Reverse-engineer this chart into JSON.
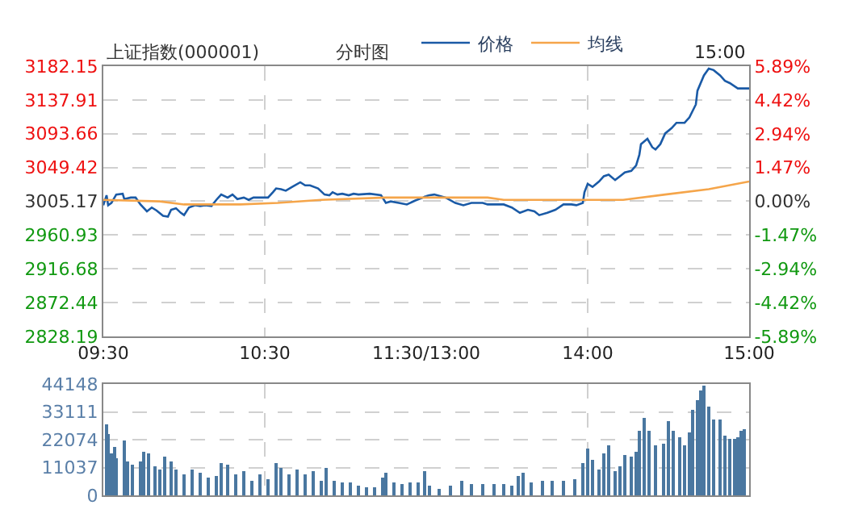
{
  "chart_data": [
    {
      "type": "line",
      "title": "上证指数(000001)",
      "subtitle": "分时图",
      "annotations": [
        "15:00"
      ],
      "legend": "top",
      "grid": true,
      "marker": "none",
      "line_style": "solid",
      "xlim": [
        9.5,
        11.5
      ],
      "xticks": [
        {
          "value": 9.5,
          "label": "09:30"
        },
        {
          "value": 10.5,
          "label": "10:30"
        },
        {
          "value": 11.5,
          "label": "11:30/13:00"
        }
      ],
      "ylim": [
        2828.19,
        3182.15
      ],
      "yticks": [
        2828.19,
        2872.44,
        2916.68,
        2960.93,
        3005.17,
        3049.42,
        3093.66,
        3137.91,
        3182.15
      ],
      "series": [
        {
          "name": "价格",
          "color": "#1a5aa6",
          "x": [
            9.5,
            9.52,
            9.53,
            9.55,
            9.58,
            9.62,
            9.63,
            9.67,
            9.7,
            9.73,
            9.77,
            9.8,
            9.83,
            9.87,
            9.9,
            9.92,
            9.95,
            9.98,
            10,
            10.03,
            10.07,
            10.1,
            10.13,
            10.17,
            10.2,
            10.23,
            10.27,
            10.3,
            10.33,
            10.37,
            10.4,
            10.43,
            10.48,
            10.52,
            10.55,
            10.57,
            10.6,
            10.63,
            10.67,
            10.72,
            10.75,
            10.78,
            10.83,
            10.87,
            10.9,
            10.92,
            10.95,
            10.98,
            11.02,
            11.05,
            11.08,
            11.15,
            11.22,
            11.25,
            11.28,
            11.33,
            11.38,
            11.43,
            11.48,
            11.5
          ],
          "values": [
            3000,
            3013,
            3000,
            3003,
            3014,
            3015,
            3008,
            3010,
            3010,
            3001,
            2992,
            2997,
            2993,
            2986,
            2985,
            2994,
            2996,
            2990,
            2987,
            2997,
            3000,
            2999,
            3000,
            2999,
            3007,
            3014,
            3010,
            3014,
            3008,
            3010,
            3007,
            3010,
            3010,
            3010,
            3017,
            3022,
            3021,
            3019,
            3024,
            3030,
            3026,
            3026,
            3022,
            3014,
            3013,
            3017,
            3014,
            3015,
            3013,
            3015,
            3014,
            3015,
            3013,
            3003,
            3005,
            3003,
            3001,
            3006,
            3010,
            3012
          ]
        },
        {
          "name": "均线",
          "color": "#f5a54a",
          "x": [
            9.5,
            9.85,
            10,
            10.35,
            10.58,
            10.85,
            11.25,
            11.5
          ],
          "values": [
            3007,
            3005,
            3001,
            3001,
            3003,
            3007,
            3010,
            3010
          ]
        }
      ]
    },
    {
      "type": "line",
      "tick_labels": "x",
      "grid": true,
      "marker": "none",
      "line_style": "solid",
      "xlim": [
        13,
        15
      ],
      "xticks": [
        {
          "value": 14,
          "label": "14:00"
        },
        {
          "value": 15,
          "label": "15:00"
        }
      ],
      "ylim": [
        2828.19,
        3182.15
      ],
      "yticks": [
        {
          "value": 2828.19,
          "label": null
        },
        {
          "value": 2872.44,
          "label": null
        },
        {
          "value": 2916.68,
          "label": null
        },
        {
          "value": 2960.93,
          "label": null
        },
        {
          "value": 3005.17,
          "label": null
        },
        {
          "value": 3049.42,
          "label": null
        },
        {
          "value": 3093.66,
          "label": null
        },
        {
          "value": 3137.91,
          "label": null
        },
        {
          "value": 3182.15,
          "label": null
        }
      ],
      "y2lim": [
        -5.89,
        5.89
      ],
      "y2ticks": [
        {
          "value": -5.89,
          "label": "-5.89%"
        },
        {
          "value": -4.42,
          "label": "-4.42%"
        },
        {
          "value": -2.94,
          "label": "-2.94%"
        },
        {
          "value": -1.47,
          "label": "-1.47%"
        },
        {
          "value": 0,
          "label": "0.00%"
        },
        {
          "value": 1.47,
          "label": "1.47%"
        },
        {
          "value": 2.94,
          "label": "2.94%"
        },
        {
          "value": 4.42,
          "label": "4.42%"
        },
        {
          "value": 5.89,
          "label": "5.89%"
        }
      ],
      "series": [
        {
          "color": "#1a5aa6",
          "x": [
            13,
            13.02,
            13.05,
            13.12,
            13.18,
            13.23,
            13.28,
            13.35,
            13.38,
            13.45,
            13.48,
            13.53,
            13.58,
            13.63,
            13.67,
            13.7,
            13.75,
            13.8,
            13.85,
            13.9,
            13.93,
            13.97,
            13.98,
            14,
            14.03,
            14.07,
            14.1,
            14.13,
            14.17,
            14.2,
            14.23,
            14.27,
            14.3,
            14.32,
            14.33,
            14.37,
            14.4,
            14.42,
            14.45,
            14.48,
            14.52,
            14.55,
            14.6,
            14.63,
            14.67,
            14.68,
            14.72,
            14.75,
            14.78,
            14.82,
            14.85,
            14.88,
            14.93,
            15
          ],
          "values": [
            3012,
            3013,
            3014,
            3010,
            3003,
            3000,
            3003,
            3003,
            3001,
            3001,
            3001,
            2997,
            2990,
            2994,
            2992,
            2987,
            2990,
            2994,
            3001,
            3001,
            3000,
            3003,
            3017,
            3028,
            3024,
            3031,
            3038,
            3040,
            3033,
            3038,
            3043,
            3045,
            3052,
            3066,
            3080,
            3087,
            3076,
            3073,
            3080,
            3094,
            3101,
            3108,
            3108,
            3115,
            3132,
            3150,
            3170,
            3179,
            3177,
            3170,
            3163,
            3160,
            3153,
            3153
          ]
        },
        {
          "color": "#f5a54a",
          "x": [
            13,
            13.05,
            13.38,
            13.48,
            14.22,
            14.48,
            14.75,
            15
          ],
          "values": [
            3010,
            3010,
            3010,
            3007,
            3007,
            3014,
            3021,
            3031
          ]
        }
      ]
    },
    {
      "type": "bar",
      "tick_labels": "y",
      "grid": true,
      "color": "#4a77a0",
      "xlim": [
        9.5,
        11.5
      ],
      "xticks": [
        {
          "value": 9.5,
          "label": null
        },
        {
          "value": 10.5,
          "label": null
        },
        {
          "value": 11.5,
          "label": null
        }
      ],
      "ylim": [
        0,
        44148
      ],
      "yticks": [
        0,
        11037,
        22074,
        33111,
        44148
      ],
      "x": [
        9.52,
        9.53,
        9.55,
        9.57,
        9.58,
        9.63,
        9.65,
        9.68,
        9.73,
        9.75,
        9.78,
        9.82,
        9.85,
        9.88,
        9.92,
        9.95,
        10,
        10.05,
        10.1,
        10.15,
        10.2,
        10.23,
        10.27,
        10.32,
        10.37,
        10.42,
        10.47,
        10.52,
        10.57,
        10.6,
        10.65,
        10.7,
        10.75,
        10.8,
        10.85,
        10.88,
        10.93,
        10.98,
        11.03,
        11.08,
        11.13,
        11.18,
        11.23,
        11.25,
        11.3,
        11.35,
        11.4,
        11.45,
        11.49
      ],
      "values": [
        28000,
        24200,
        16400,
        18900,
        14700,
        21700,
        13200,
        12200,
        13700,
        17000,
        16800,
        11800,
        10100,
        15300,
        13200,
        10500,
        8400,
        10100,
        9000,
        6900,
        7600,
        12600,
        12200,
        8000,
        9700,
        5900,
        8000,
        6300,
        12800,
        11100,
        8000,
        10500,
        8400,
        9700,
        5900,
        11100,
        5500,
        5300,
        4800,
        3800,
        3400,
        3400,
        6900,
        8800,
        5300,
        4200,
        5300,
        4800,
        9700
      ]
    },
    {
      "type": "bar",
      "tick_labels": false,
      "grid": true,
      "color": "#4a77a0",
      "xlim": [
        13,
        15
      ],
      "xticks": [
        {
          "value": 13,
          "label": null
        },
        {
          "value": 14,
          "label": null
        },
        {
          "value": 15,
          "label": null
        }
      ],
      "ylim": [
        0,
        44148
      ],
      "yticks": [
        {
          "value": 0,
          "label": null
        },
        {
          "value": 11037,
          "label": null
        },
        {
          "value": 22074,
          "label": null
        },
        {
          "value": 33111,
          "label": null
        },
        {
          "value": 44148,
          "label": null
        }
      ],
      "x": [
        13.02,
        13.08,
        13.15,
        13.22,
        13.28,
        13.35,
        13.42,
        13.48,
        13.53,
        13.57,
        13.6,
        13.65,
        13.72,
        13.78,
        13.85,
        13.92,
        13.97,
        14,
        14.03,
        14.07,
        14.1,
        14.13,
        14.17,
        14.2,
        14.23,
        14.27,
        14.3,
        14.32,
        14.35,
        14.38,
        14.42,
        14.47,
        14.5,
        14.53,
        14.57,
        14.6,
        14.63,
        14.65,
        14.68,
        14.7,
        14.72,
        14.75,
        14.78,
        14.82,
        14.85,
        14.88,
        14.91,
        14.93,
        14.95,
        14.97
      ],
      "values": [
        3800,
        2700,
        3800,
        5500,
        4400,
        4200,
        4200,
        4200,
        3800,
        7600,
        9200,
        4800,
        5900,
        5900,
        5900,
        6300,
        12600,
        18500,
        14300,
        10100,
        16800,
        19600,
        9700,
        11800,
        16000,
        15300,
        17500,
        25900,
        30700,
        25900,
        19600,
        20200,
        29400,
        25900,
        23100,
        19600,
        24800,
        33600,
        37800,
        41600,
        43700,
        35300,
        30100,
        30100,
        23800,
        22700,
        22700,
        23100,
        25900,
        26500
      ]
    }
  ]
}
